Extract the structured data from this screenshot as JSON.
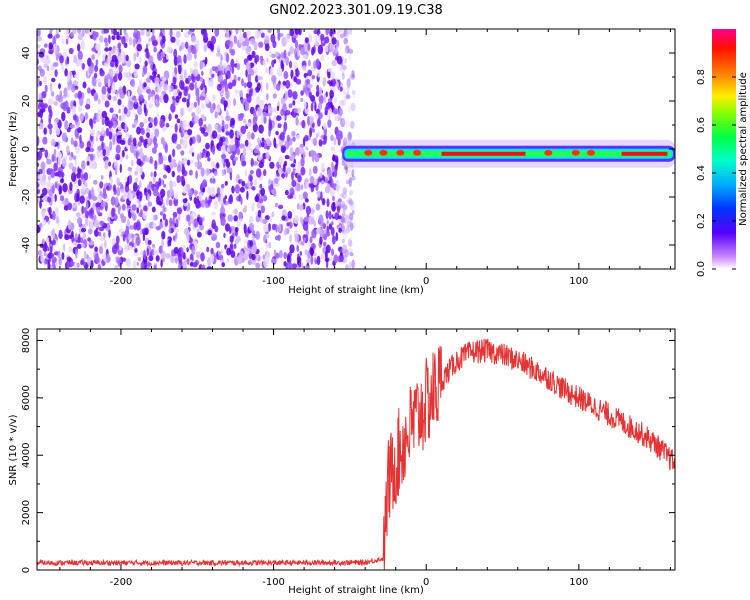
{
  "figure": {
    "title": "GN02.2023.301.09.19.C38"
  },
  "chart_data": [
    {
      "type": "heatmap",
      "xlabel": "Height of straight line (km)",
      "ylabel": "Frequency (Hz)",
      "xlim": [
        -255,
        163
      ],
      "ylim": [
        -50,
        50
      ],
      "xticks": [
        -200,
        -100,
        0,
        100
      ],
      "yticks": [
        -40,
        -20,
        0,
        20,
        40
      ],
      "noise_region_x": [
        -255,
        -50
      ],
      "signal_line": {
        "x_start": -55,
        "x_end": 163,
        "frequency_hz": -2
      },
      "colorbar": {
        "label": "Normalized spectral amplitude",
        "range": [
          0.0,
          1.0
        ],
        "ticks": [
          0.0,
          0.2,
          0.4,
          0.6,
          0.8
        ]
      }
    },
    {
      "type": "line",
      "xlabel": "Height of straight line (km)",
      "ylabel": "SNR (10 * v/v)",
      "xlim": [
        -255,
        163
      ],
      "ylim": [
        0,
        8400
      ],
      "xticks": [
        -200,
        -100,
        0,
        100
      ],
      "yticks": [
        0,
        2000,
        4000,
        6000,
        8000
      ],
      "color": "#e53333",
      "series": [
        {
          "x": [
            -255,
            -200,
            -100,
            -40,
            -28,
            -25,
            -20,
            -10,
            0,
            10,
            20,
            30,
            40,
            50,
            60,
            70,
            80,
            90,
            100,
            110,
            120,
            130,
            140,
            150,
            163
          ],
          "values": [
            250,
            250,
            250,
            260,
            400,
            3000,
            3800,
            5000,
            5800,
            6600,
            7300,
            7600,
            7650,
            7500,
            7300,
            7000,
            6700,
            6300,
            6000,
            5700,
            5400,
            5100,
            4800,
            4400,
            3700
          ]
        }
      ]
    }
  ]
}
